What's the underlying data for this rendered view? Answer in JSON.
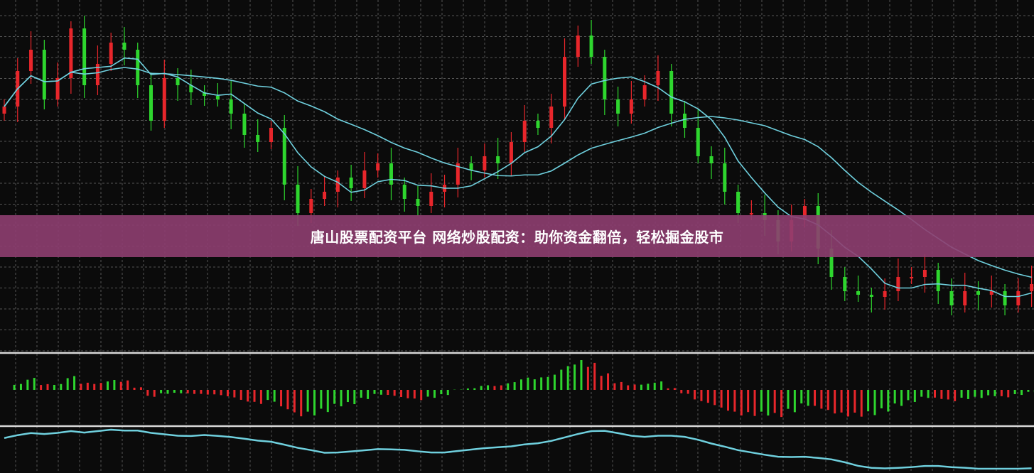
{
  "banner": {
    "title": "唐山股票配资平台 网络炒股配资：助你资金翻倍，轻松掘金股市"
  },
  "chart_data": {
    "type": "candlestick",
    "panels": [
      "price candlesticks with two moving averages",
      "histogram oscillator",
      "line oscillator"
    ],
    "closes": [
      32,
      37,
      40,
      33,
      36,
      43,
      35,
      38,
      41,
      40,
      35,
      30,
      36,
      35,
      34,
      33.5,
      33,
      31,
      28,
      27,
      29,
      21,
      17,
      19,
      20,
      22,
      20.5,
      23,
      24,
      21,
      19,
      18,
      20,
      21,
      24,
      23,
      25,
      24,
      27,
      30,
      29,
      32,
      39,
      42,
      39,
      33,
      31,
      33,
      35,
      37,
      31,
      29,
      25,
      24,
      20,
      17,
      17,
      16,
      13,
      16,
      18,
      12,
      8,
      6,
      5.5,
      5.2,
      6,
      8,
      8,
      9,
      6,
      4,
      6,
      5.5,
      6,
      4,
      6,
      7
    ],
    "grid": true,
    "colors": {
      "up": "#e8262b",
      "down": "#2ed62e",
      "ma": "#6fd0de",
      "separator": "#d8d8d8",
      "banner": "#8e3e70"
    }
  }
}
